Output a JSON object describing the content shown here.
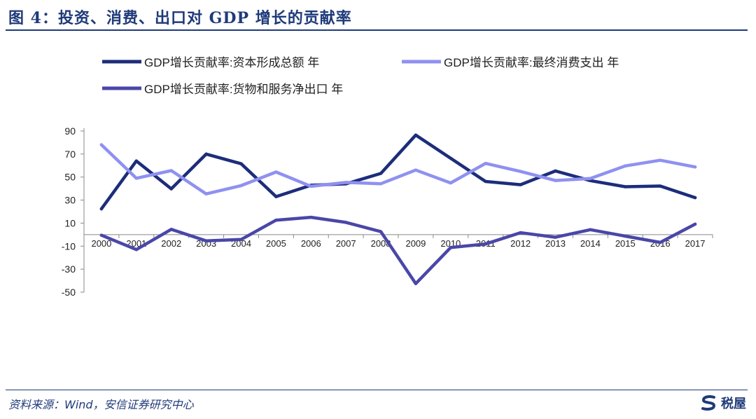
{
  "page": {
    "title": "图 4：投资、消费、出口对 GDP 增长的贡献率",
    "source": "资料来源：Wind，安信证券研究中心",
    "brand": "税屋",
    "brand_icon": "s-logo-icon"
  },
  "colors": {
    "accent": "#1f3a7a",
    "capital": "#1c2d7a",
    "consumption": "#8f91f0",
    "netexport": "#4a47a8"
  },
  "chart_data": {
    "type": "line",
    "title": "",
    "xlabel": "",
    "ylabel": "",
    "ylim": [
      -50,
      90
    ],
    "yticks": [
      -50,
      -30,
      -10,
      10,
      30,
      50,
      70,
      90
    ],
    "x": [
      "2000",
      "2001",
      "2002",
      "2003",
      "2004",
      "2005",
      "2006",
      "2007",
      "2008",
      "2009",
      "2010",
      "2011",
      "2012",
      "2013",
      "2014",
      "2015",
      "2016",
      "2017"
    ],
    "grid": false,
    "legend_position": "top",
    "series": [
      {
        "name": "GDP增长贡献率:资本形成总额 年",
        "color": "#1c2d7a",
        "values": [
          22.4,
          64,
          39.8,
          70,
          61.6,
          33,
          42.9,
          44.1,
          53.2,
          86.5,
          66.3,
          46.2,
          43.4,
          55.3,
          46.9,
          41.6,
          42.2,
          32.1
        ]
      },
      {
        "name": "GDP增长贡献率:最终消费支出 年",
        "color": "#8f91f0",
        "values": [
          78.1,
          49,
          55.6,
          35.4,
          42.6,
          54.4,
          42,
          45.3,
          44.2,
          56.1,
          44.9,
          61.9,
          54.9,
          47,
          48.8,
          59.7,
          64.6,
          58.8
        ]
      },
      {
        "name": "GDP增长贡献率:货物和服务净出口 年",
        "color": "#4a47a8",
        "values": [
          -0.5,
          -13,
          4.6,
          -5.4,
          -4.2,
          12.6,
          15.1,
          10.6,
          2.6,
          -42.6,
          -11.2,
          -8.1,
          1.7,
          -2.3,
          4.3,
          -1.3,
          -6.8,
          9.1
        ]
      }
    ]
  }
}
